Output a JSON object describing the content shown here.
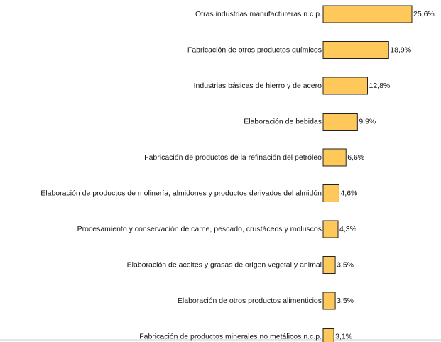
{
  "chart_data": {
    "type": "bar",
    "orientation": "horizontal",
    "categories": [
      "Otras industrias manufactureras n.c.p.",
      "Fabricación de otros productos químicos",
      "Industrias básicas de hierro y de acero",
      "Elaboración de bebidas",
      "Fabricación de productos de la refinación del petróleo",
      "Elaboración de productos de molinería, almidones y productos derivados del almidón",
      "Procesamiento y conservación de carne, pescado, crustáceos y moluscos",
      "Elaboración de aceites y grasas de origen vegetal y animal",
      "Elaboración de otros productos alimenticios",
      "Fabricación de productos minerales no metálicos n.c.p."
    ],
    "values": [
      25.6,
      18.9,
      12.8,
      9.9,
      6.6,
      4.6,
      4.3,
      3.5,
      3.5,
      3.1
    ],
    "value_labels": [
      "25,6%",
      "18,9%",
      "12,8%",
      "9,9%",
      "6,6%",
      "4,6%",
      "4,3%",
      "3,5%",
      "3,5%",
      "3,1%"
    ],
    "color": "#ffc85a"
  }
}
